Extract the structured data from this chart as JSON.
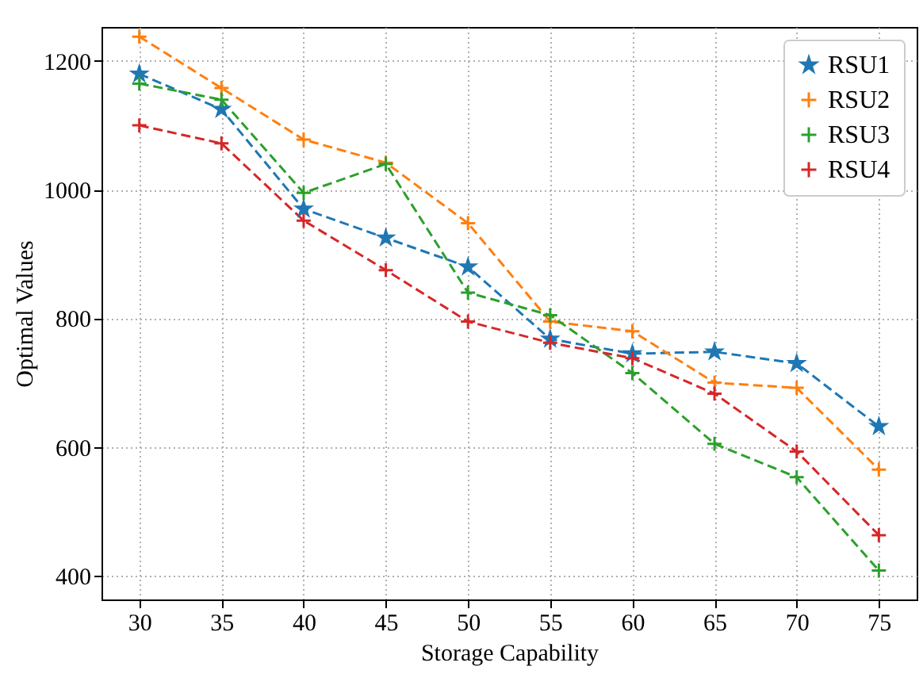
{
  "chart_data": {
    "type": "line",
    "xlabel": "Storage Capability",
    "ylabel": "Optimal Values",
    "x": [
      30,
      35,
      40,
      45,
      50,
      55,
      60,
      65,
      70,
      75
    ],
    "series": [
      {
        "name": "RSU1",
        "color": "#1f77b4",
        "marker": "star",
        "values": [
          1180,
          1125,
          970,
          925,
          880,
          768,
          745,
          748,
          730,
          632
        ]
      },
      {
        "name": "RSU2",
        "color": "#ff7f0e",
        "marker": "cross",
        "values": [
          1238,
          1158,
          1078,
          1042,
          948,
          795,
          780,
          700,
          692,
          565
        ]
      },
      {
        "name": "RSU3",
        "color": "#2ca02c",
        "marker": "cross",
        "values": [
          1165,
          1140,
          995,
          1040,
          840,
          805,
          715,
          605,
          553,
          408
        ]
      },
      {
        "name": "RSU4",
        "color": "#d62728",
        "marker": "cross",
        "values": [
          1100,
          1072,
          952,
          875,
          795,
          762,
          738,
          683,
          593,
          463
        ]
      }
    ],
    "xlim": [
      27.7,
      77.3
    ],
    "xticks": [
      30,
      35,
      40,
      45,
      50,
      55,
      60,
      65,
      70,
      75
    ],
    "ylim": [
      363,
      1253
    ],
    "yticks": [
      400,
      600,
      800,
      1000,
      1200
    ],
    "grid": true,
    "legend": "top right",
    "line_style": "dashed"
  }
}
